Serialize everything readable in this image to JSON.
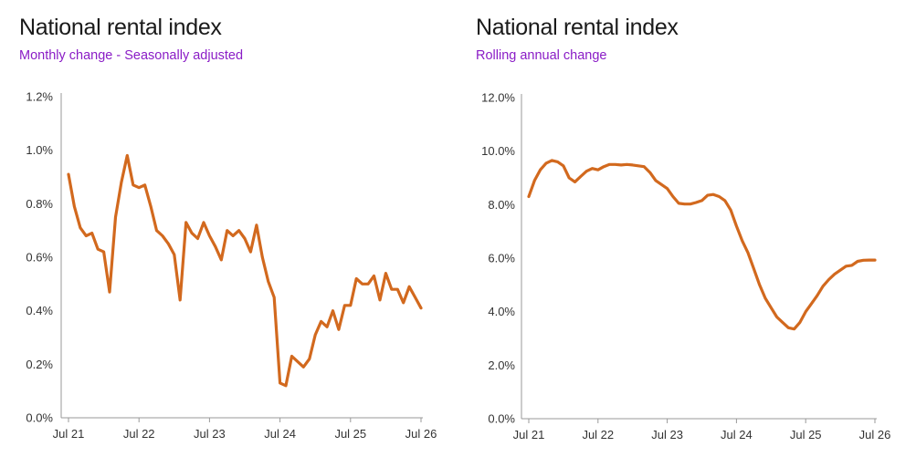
{
  "colors": {
    "line": "#d2691e",
    "title": "#1a1a1a",
    "subtitle": "#8a1cc6",
    "axis": "#999999"
  },
  "chart_data": [
    {
      "type": "line",
      "title": "National rental index",
      "subtitle": "Monthly change - Seasonally adjusted",
      "xlabel": "",
      "ylabel": "",
      "x_tick_labels": [
        "Jul 21",
        "Jul 22",
        "Jul 23",
        "Jul 24",
        "Jul 25",
        "Jul 26"
      ],
      "y_tick_labels": [
        "0.0%",
        "0.2%",
        "0.4%",
        "0.6%",
        "0.8%",
        "1.0%",
        "1.2%"
      ],
      "y_ticks": [
        0,
        0.2,
        0.4,
        0.6,
        0.8,
        1.0,
        1.2
      ],
      "ylim": [
        0,
        1.2
      ],
      "x_unit": "months since Jul 21",
      "xlim": [
        0,
        60
      ],
      "grid": false,
      "series": [
        {
          "x": [
            0,
            1,
            2,
            3,
            4,
            5,
            6,
            7,
            8,
            9,
            10,
            11,
            12,
            13,
            14,
            15,
            16,
            17,
            18,
            19,
            20,
            21,
            22,
            23,
            24,
            25,
            26,
            27,
            28,
            29,
            30,
            31,
            32,
            33,
            34,
            35,
            36,
            37,
            38,
            39,
            40,
            41,
            42,
            43,
            44,
            45,
            46,
            47,
            48,
            49,
            50,
            51,
            52,
            53,
            54,
            55,
            56,
            57,
            58,
            59,
            60
          ],
          "values": [
            0.91,
            0.79,
            0.71,
            0.68,
            0.69,
            0.63,
            0.62,
            0.47,
            0.75,
            0.88,
            0.98,
            0.87,
            0.86,
            0.87,
            0.79,
            0.7,
            0.68,
            0.65,
            0.61,
            0.44,
            0.73,
            0.69,
            0.67,
            0.73,
            0.68,
            0.64,
            0.59,
            0.7,
            0.68,
            0.7,
            0.67,
            0.62,
            0.72,
            0.6,
            0.51,
            0.45,
            0.13,
            0.12,
            0.23,
            0.21,
            0.19,
            0.22,
            0.31,
            0.36,
            0.34,
            0.4,
            0.33,
            0.42,
            0.42,
            0.52,
            0.5,
            0.5,
            0.53,
            0.44,
            0.54,
            0.48,
            0.48,
            0.43,
            0.49,
            0.45,
            0.41
          ]
        }
      ]
    },
    {
      "type": "line",
      "title": "National rental index",
      "subtitle": "Rolling annual change",
      "xlabel": "",
      "ylabel": "",
      "x_tick_labels": [
        "Jul 21",
        "Jul 22",
        "Jul 23",
        "Jul 24",
        "Jul 25",
        "Jul 26"
      ],
      "y_tick_labels": [
        "0.0%",
        "2.0%",
        "4.0%",
        "6.0%",
        "8.0%",
        "10.0%",
        "12.0%"
      ],
      "y_ticks": [
        0,
        2,
        4,
        6,
        8,
        10,
        12
      ],
      "ylim": [
        0,
        12
      ],
      "x_unit": "months since Jul 21",
      "xlim": [
        0,
        60
      ],
      "grid": false,
      "series": [
        {
          "x": [
            0,
            1,
            2,
            3,
            4,
            5,
            6,
            7,
            8,
            9,
            10,
            11,
            12,
            13,
            14,
            15,
            16,
            17,
            18,
            19,
            20,
            21,
            22,
            23,
            24,
            25,
            26,
            27,
            28,
            29,
            30,
            31,
            32,
            33,
            34,
            35,
            36,
            37,
            38,
            39,
            40,
            41,
            42,
            43,
            44,
            45,
            46,
            47,
            48,
            49,
            50,
            51,
            52,
            53,
            54,
            55,
            56,
            57,
            58,
            59,
            60
          ],
          "values": [
            8.3,
            8.9,
            9.3,
            9.55,
            9.65,
            9.6,
            9.45,
            9.0,
            8.85,
            9.05,
            9.25,
            9.35,
            9.3,
            9.42,
            9.5,
            9.5,
            9.48,
            9.5,
            9.48,
            9.45,
            9.42,
            9.2,
            8.9,
            8.75,
            8.6,
            8.3,
            8.05,
            8.02,
            8.02,
            8.08,
            8.15,
            8.35,
            8.38,
            8.3,
            8.15,
            7.8,
            7.2,
            6.65,
            6.2,
            5.6,
            5.0,
            4.5,
            4.15,
            3.8,
            3.6,
            3.4,
            3.35,
            3.6,
            4.0,
            4.3,
            4.6,
            4.95,
            5.2,
            5.4,
            5.55,
            5.7,
            5.73,
            5.88,
            5.92,
            5.93,
            5.93
          ]
        }
      ]
    }
  ]
}
